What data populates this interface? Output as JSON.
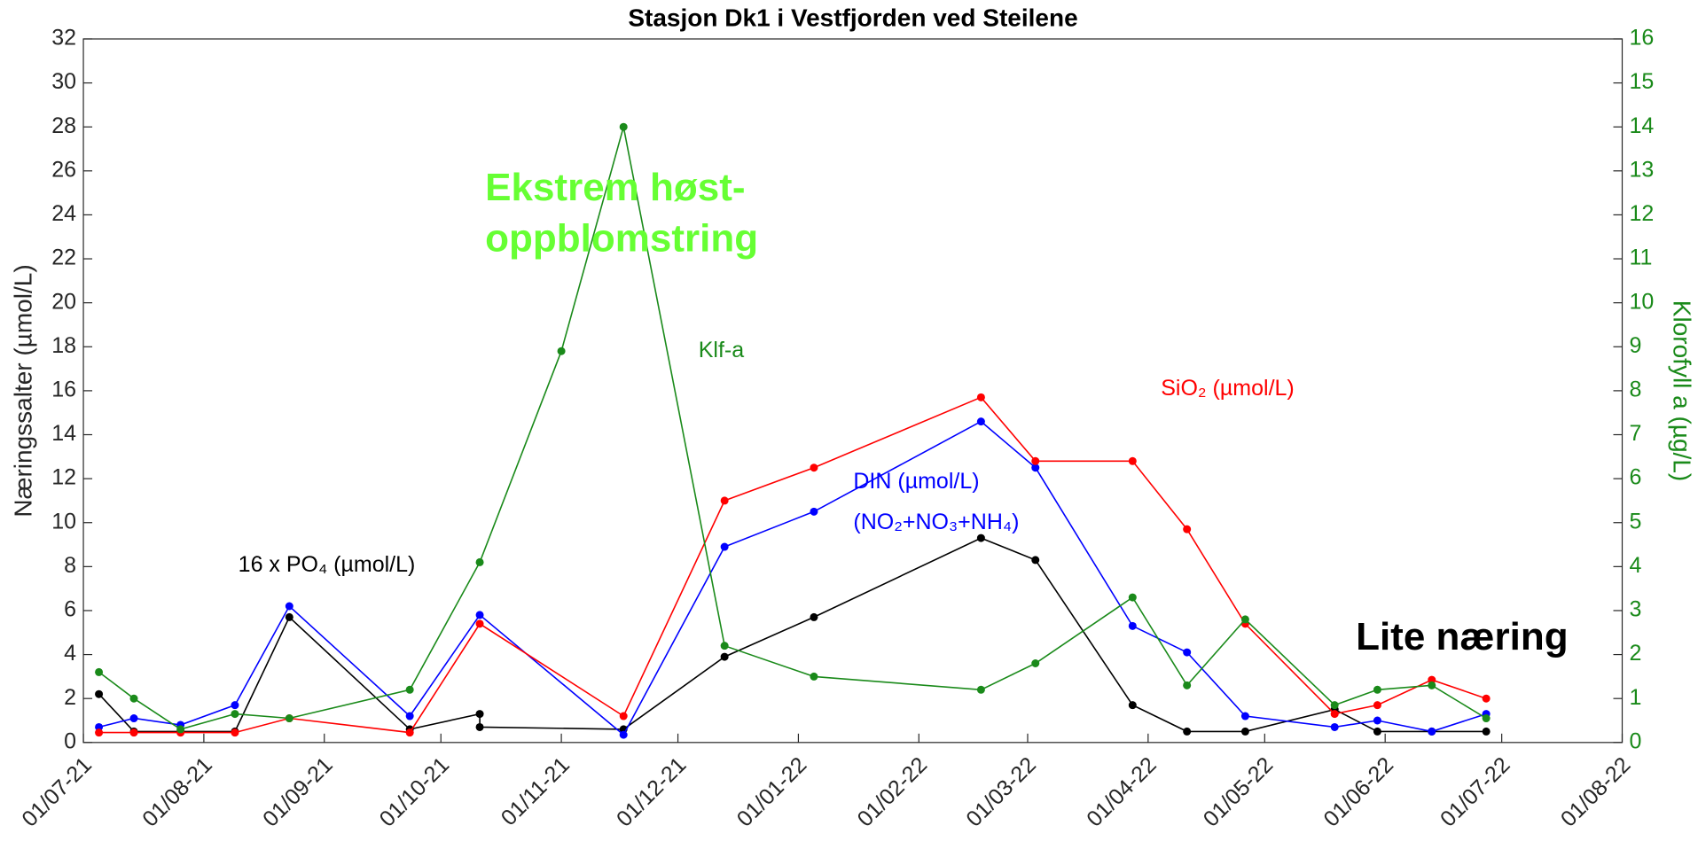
{
  "chart_data": {
    "type": "line",
    "title": "Stasjon Dk1 i Vestfjorden ved Steilene",
    "y_label": "Næringssalter (µmol/L)",
    "y2_label": "Klorofyll a (µg/L)",
    "xlim": [
      "2021-07-01",
      "2022-08-01"
    ],
    "xticks": [
      {
        "value": "2021-07-01",
        "label": "01/07-21"
      },
      {
        "value": "2021-08-01",
        "label": "01/08-21"
      },
      {
        "value": "2021-09-01",
        "label": "01/09-21"
      },
      {
        "value": "2021-10-01",
        "label": "01/10-21"
      },
      {
        "value": "2021-11-01",
        "label": "01/11-21"
      },
      {
        "value": "2021-12-01",
        "label": "01/12-21"
      },
      {
        "value": "2022-01-01",
        "label": "01/01-22"
      },
      {
        "value": "2022-02-01",
        "label": "01/02-22"
      },
      {
        "value": "2022-03-01",
        "label": "01/03-22"
      },
      {
        "value": "2022-04-01",
        "label": "01/04-22"
      },
      {
        "value": "2022-05-01",
        "label": "01/05-22"
      },
      {
        "value": "2022-06-01",
        "label": "01/06-22"
      },
      {
        "value": "2022-07-01",
        "label": "01/07-22"
      },
      {
        "value": "2022-08-01",
        "label": "01/08-22"
      }
    ],
    "ylim": [
      0,
      32
    ],
    "yticks": [
      0,
      2,
      4,
      6,
      8,
      10,
      12,
      14,
      16,
      18,
      20,
      22,
      24,
      26,
      28,
      30,
      32
    ],
    "y2lim": [
      0,
      16
    ],
    "y2ticks": [
      0,
      1,
      2,
      3,
      4,
      5,
      6,
      7,
      8,
      9,
      10,
      11,
      12,
      13,
      14,
      15,
      16
    ],
    "y2_color": "#1a8a1a",
    "grid": false,
    "series": [
      {
        "name": "16 x PO₄",
        "color": "#000000",
        "x": [
          "2021-07-05",
          "2021-07-14",
          "2021-07-26",
          "2021-08-09",
          "2021-08-23",
          "2021-09-23",
          "2021-10-11",
          "2021-10-11",
          "2021-11-17",
          "2021-12-13",
          "2022-01-05",
          "2022-02-17",
          "2022-03-03",
          "2022-03-28",
          "2022-04-11",
          "2022-04-26",
          "2022-05-19",
          "2022-05-30",
          "2022-06-13",
          "2022-06-27"
        ],
        "values": [
          2.2,
          0.5,
          0.5,
          0.5,
          5.7,
          0.6,
          1.3,
          0.7,
          0.6,
          3.9,
          5.7,
          9.3,
          8.3,
          1.7,
          0.5,
          0.5,
          1.5,
          0.5,
          0.5,
          0.5
        ]
      },
      {
        "name": "DIN",
        "color": "#0000ff",
        "x": [
          "2021-07-05",
          "2021-07-14",
          "2021-07-26",
          "2021-08-09",
          "2021-08-23",
          "2021-09-23",
          "2021-10-11",
          "2021-11-17",
          "2021-12-13",
          "2022-01-05",
          "2022-02-17",
          "2022-03-03",
          "2022-03-28",
          "2022-04-11",
          "2022-04-26",
          "2022-05-19",
          "2022-05-30",
          "2022-06-13",
          "2022-06-27"
        ],
        "values": [
          0.7,
          1.1,
          0.8,
          1.7,
          6.2,
          1.2,
          5.8,
          0.35,
          8.9,
          10.5,
          14.6,
          12.5,
          5.3,
          4.1,
          1.2,
          0.7,
          1.0,
          0.5,
          1.3
        ]
      },
      {
        "name": "SiO₂",
        "color": "#ff0000",
        "x": [
          "2021-07-05",
          "2021-07-14",
          "2021-07-26",
          "2021-08-09",
          "2021-08-23",
          "2021-09-23",
          "2021-10-11",
          "2021-11-17",
          "2021-12-13",
          "2022-01-05",
          "2022-02-17",
          "2022-03-03",
          "2022-03-28",
          "2022-04-11",
          "2022-04-26",
          "2022-05-19",
          "2022-05-30",
          "2022-06-13",
          "2022-06-27"
        ],
        "values": [
          0.45,
          0.45,
          0.45,
          0.45,
          1.1,
          0.45,
          5.4,
          1.2,
          11.0,
          12.5,
          15.7,
          12.8,
          12.8,
          9.7,
          5.4,
          1.3,
          1.7,
          2.85,
          2.0
        ]
      },
      {
        "name": "Klf-a",
        "color": "#1a8a1a",
        "axis": "y2",
        "x": [
          "2021-07-05",
          "2021-07-14",
          "2021-07-26",
          "2021-08-09",
          "2021-08-23",
          "2021-09-23",
          "2021-10-11",
          "2021-11-01",
          "2021-11-17",
          "2021-12-13",
          "2022-01-05",
          "2022-02-17",
          "2022-03-03",
          "2022-03-28",
          "2022-04-11",
          "2022-04-26",
          "2022-05-19",
          "2022-05-30",
          "2022-06-13",
          "2022-06-27"
        ],
        "values": [
          1.6,
          1.0,
          0.3,
          0.65,
          0.55,
          1.2,
          4.1,
          8.9,
          14.0,
          2.2,
          1.5,
          1.2,
          1.8,
          3.3,
          1.3,
          2.8,
          0.85,
          1.2,
          1.3,
          0.55
        ]
      }
    ],
    "annotations": [
      {
        "text": "Ekstrem høst-",
        "color": "#66ff33"
      },
      {
        "text": "oppblomstring",
        "color": "#66ff33"
      },
      {
        "text": "Klf-a",
        "color": "#1a8a1a"
      },
      {
        "text": "SiO₂ (µmol/L)",
        "color": "#ff0000"
      },
      {
        "text": "DIN (µmol/L)",
        "color": "#0000ff"
      },
      {
        "text": "(NO₂+NO₃+NH₄)",
        "color": "#0000ff"
      },
      {
        "text": "16 x PO₄ (µmol/L)",
        "color": "#000000"
      },
      {
        "text": "Lite næring",
        "color": "#000000"
      }
    ]
  }
}
